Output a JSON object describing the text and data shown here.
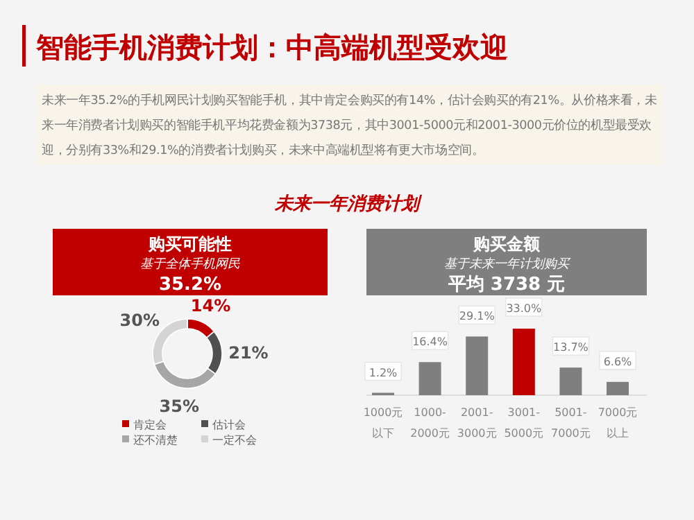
{
  "chart_data": [
    {
      "type": "other",
      "title": "智能手机消费计划：中高端机型受欢迎",
      "annotations": [
        "未来一年35.2%的手机网民计划购买智能手机，其中肯定会购买的有14%，估计会购买的有21%。从价格来看，未来一年消费者计划购买的智能手机平均花费金额为3738元，其中3001-5000元和2001-3000元价位的机型最受欢迎，分别有33%和29.1%的消费者计划购买，未来中高端机型将有更大市场空间。",
        "未来一年消费计划"
      ]
    },
    {
      "type": "donut",
      "title": "购买可能性",
      "subtitle": "基于全体手机网民",
      "annotations": [
        "35.2%"
      ],
      "categories": [
        "肯定会",
        "估计会",
        "还不清楚",
        "一定不会"
      ],
      "values": [
        14,
        21,
        35,
        30
      ],
      "colors": [
        "#c00000",
        "#505050",
        "#a6a6a6",
        "#d4d4d4"
      ],
      "value_labels": [
        "14%",
        "21%",
        "35%",
        "30%"
      ],
      "legend": "bottom"
    },
    {
      "type": "bar",
      "title": "购买金额",
      "subtitle": "基于未来一年计划购买",
      "annotations": [
        "平均 3738 元"
      ],
      "categories": [
        "1000元以下",
        "1000-2000元",
        "2001-3000元",
        "3001-5000元",
        "5001-7000元",
        "7000元以上"
      ],
      "values": [
        1.2,
        16.4,
        29.1,
        33.0,
        13.7,
        6.6
      ],
      "colors": [
        "#7f7f7f",
        "#7f7f7f",
        "#7f7f7f",
        "#c00000",
        "#7f7f7f",
        "#7f7f7f"
      ],
      "value_labels": [
        "1.2%",
        "16.4%",
        "29.1%",
        "33.0%",
        "13.7%",
        "6.6%"
      ]
    }
  ]
}
